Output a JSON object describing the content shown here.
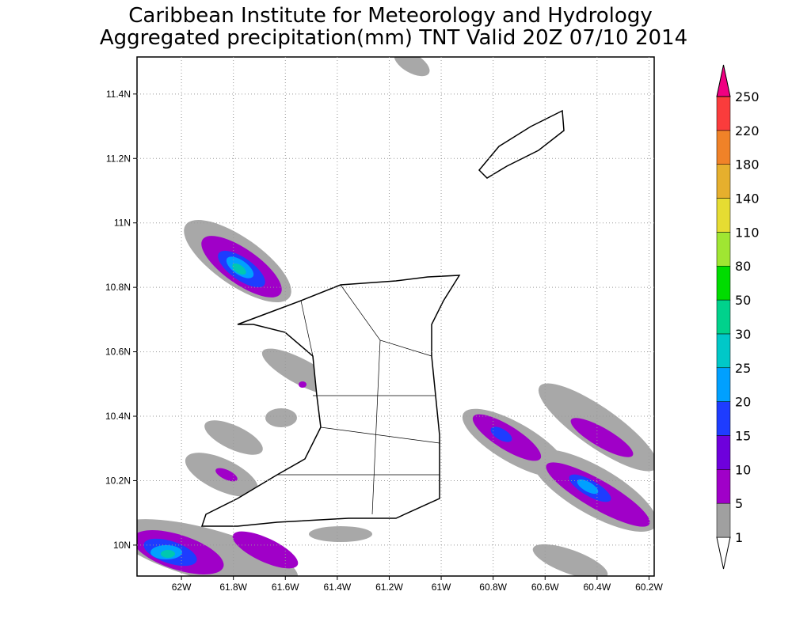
{
  "title": {
    "line1": "Caribbean Institute for Meteorology and Hydrology",
    "line2": "Aggregated precipitation(mm) TNT Valid 20Z 07/10 2014"
  },
  "map": {
    "lonlim": [
      -62.171,
      -60.18
    ],
    "latlim": [
      9.904,
      11.515
    ],
    "lon_ticks": [
      {
        "value": -62,
        "label": "62W"
      },
      {
        "value": -61.8,
        "label": "61.8W"
      },
      {
        "value": -61.6,
        "label": "61.6W"
      },
      {
        "value": -61.4,
        "label": "61.4W"
      },
      {
        "value": -61.2,
        "label": "61.2W"
      },
      {
        "value": -61,
        "label": "61W"
      },
      {
        "value": -60.8,
        "label": "60.8W"
      },
      {
        "value": -60.6,
        "label": "60.6W"
      },
      {
        "value": -60.4,
        "label": "60.4W"
      },
      {
        "value": -60.2,
        "label": "60.2W"
      }
    ],
    "lat_ticks": [
      {
        "value": 10,
        "label": "10N"
      },
      {
        "value": 10.2,
        "label": "10.2N"
      },
      {
        "value": 10.4,
        "label": "10.4N"
      },
      {
        "value": 10.6,
        "label": "10.6N"
      },
      {
        "value": 10.8,
        "label": "10.8N"
      },
      {
        "value": 11,
        "label": "11N"
      },
      {
        "value": 11.2,
        "label": "11.2N"
      },
      {
        "value": 11.4,
        "label": "11.4N"
      }
    ]
  },
  "colorbar": {
    "levels": [
      1,
      5,
      10,
      15,
      20,
      25,
      30,
      50,
      80,
      110,
      140,
      180,
      220,
      250
    ],
    "colors": [
      "#ffffff",
      "#a0a0a0",
      "#a000c8",
      "#6e00dc",
      "#1e3cff",
      "#00a0ff",
      "#00c8c8",
      "#00d28c",
      "#00dc00",
      "#a0e632",
      "#e6dc32",
      "#e6af2d",
      "#f08228",
      "#fa3c3c",
      "#f00082"
    ]
  }
}
